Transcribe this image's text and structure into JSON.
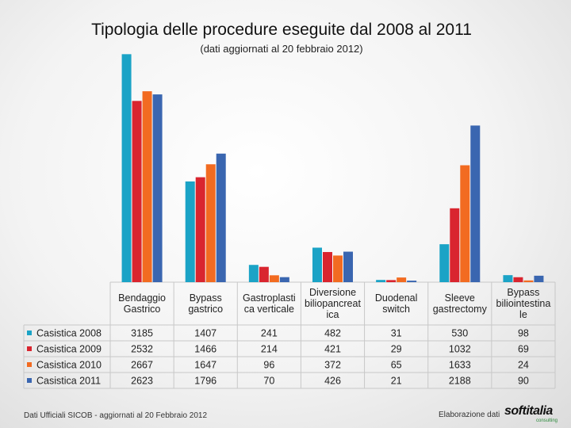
{
  "header": {
    "title": "Tipologia delle procedure eseguite dal 2008 al 2011",
    "subtitle": "(dati aggiornati al 20 febbraio 2012)"
  },
  "footer": {
    "source": "Dati Ufficiali SICOB - aggiornati al 20 Febbraio 2012",
    "credit": "Elaborazione dati",
    "logo_text": "softitalia",
    "logo_sub": "consulting"
  },
  "chart_data": {
    "type": "bar",
    "title": "Tipologia delle procedure eseguite dal 2008 al 2011",
    "subtitle": "(dati aggiornati al 20 febbraio 2012)",
    "xlabel": "",
    "ylabel": "",
    "ylim": [
      0,
      3200
    ],
    "grid": false,
    "legend": "bottom-left (data table)",
    "categories": [
      [
        "Bendaggio",
        "Gastrico"
      ],
      [
        "Bypass",
        "gastrico"
      ],
      [
        "Gastroplasti",
        "ca verticale"
      ],
      [
        "Diversione",
        "biliopancreat",
        "ica"
      ],
      [
        "Duodenal",
        "switch"
      ],
      [
        "Sleeve",
        "gastrectomy"
      ],
      [
        "Bypass",
        "biliointestina",
        "le"
      ]
    ],
    "series": [
      {
        "name": "Casistica 2008",
        "color": "#1ba3c6",
        "values": [
          3185,
          1407,
          241,
          482,
          31,
          530,
          98
        ]
      },
      {
        "name": "Casistica 2009",
        "color": "#d9252f",
        "values": [
          2532,
          1466,
          214,
          421,
          29,
          1032,
          69
        ]
      },
      {
        "name": "Casistica 2010",
        "color": "#f26b21",
        "values": [
          2667,
          1647,
          96,
          372,
          65,
          1633,
          24
        ]
      },
      {
        "name": "Casistica 2011",
        "color": "#3a66b0",
        "values": [
          2623,
          1796,
          70,
          426,
          21,
          2188,
          90
        ]
      }
    ]
  }
}
